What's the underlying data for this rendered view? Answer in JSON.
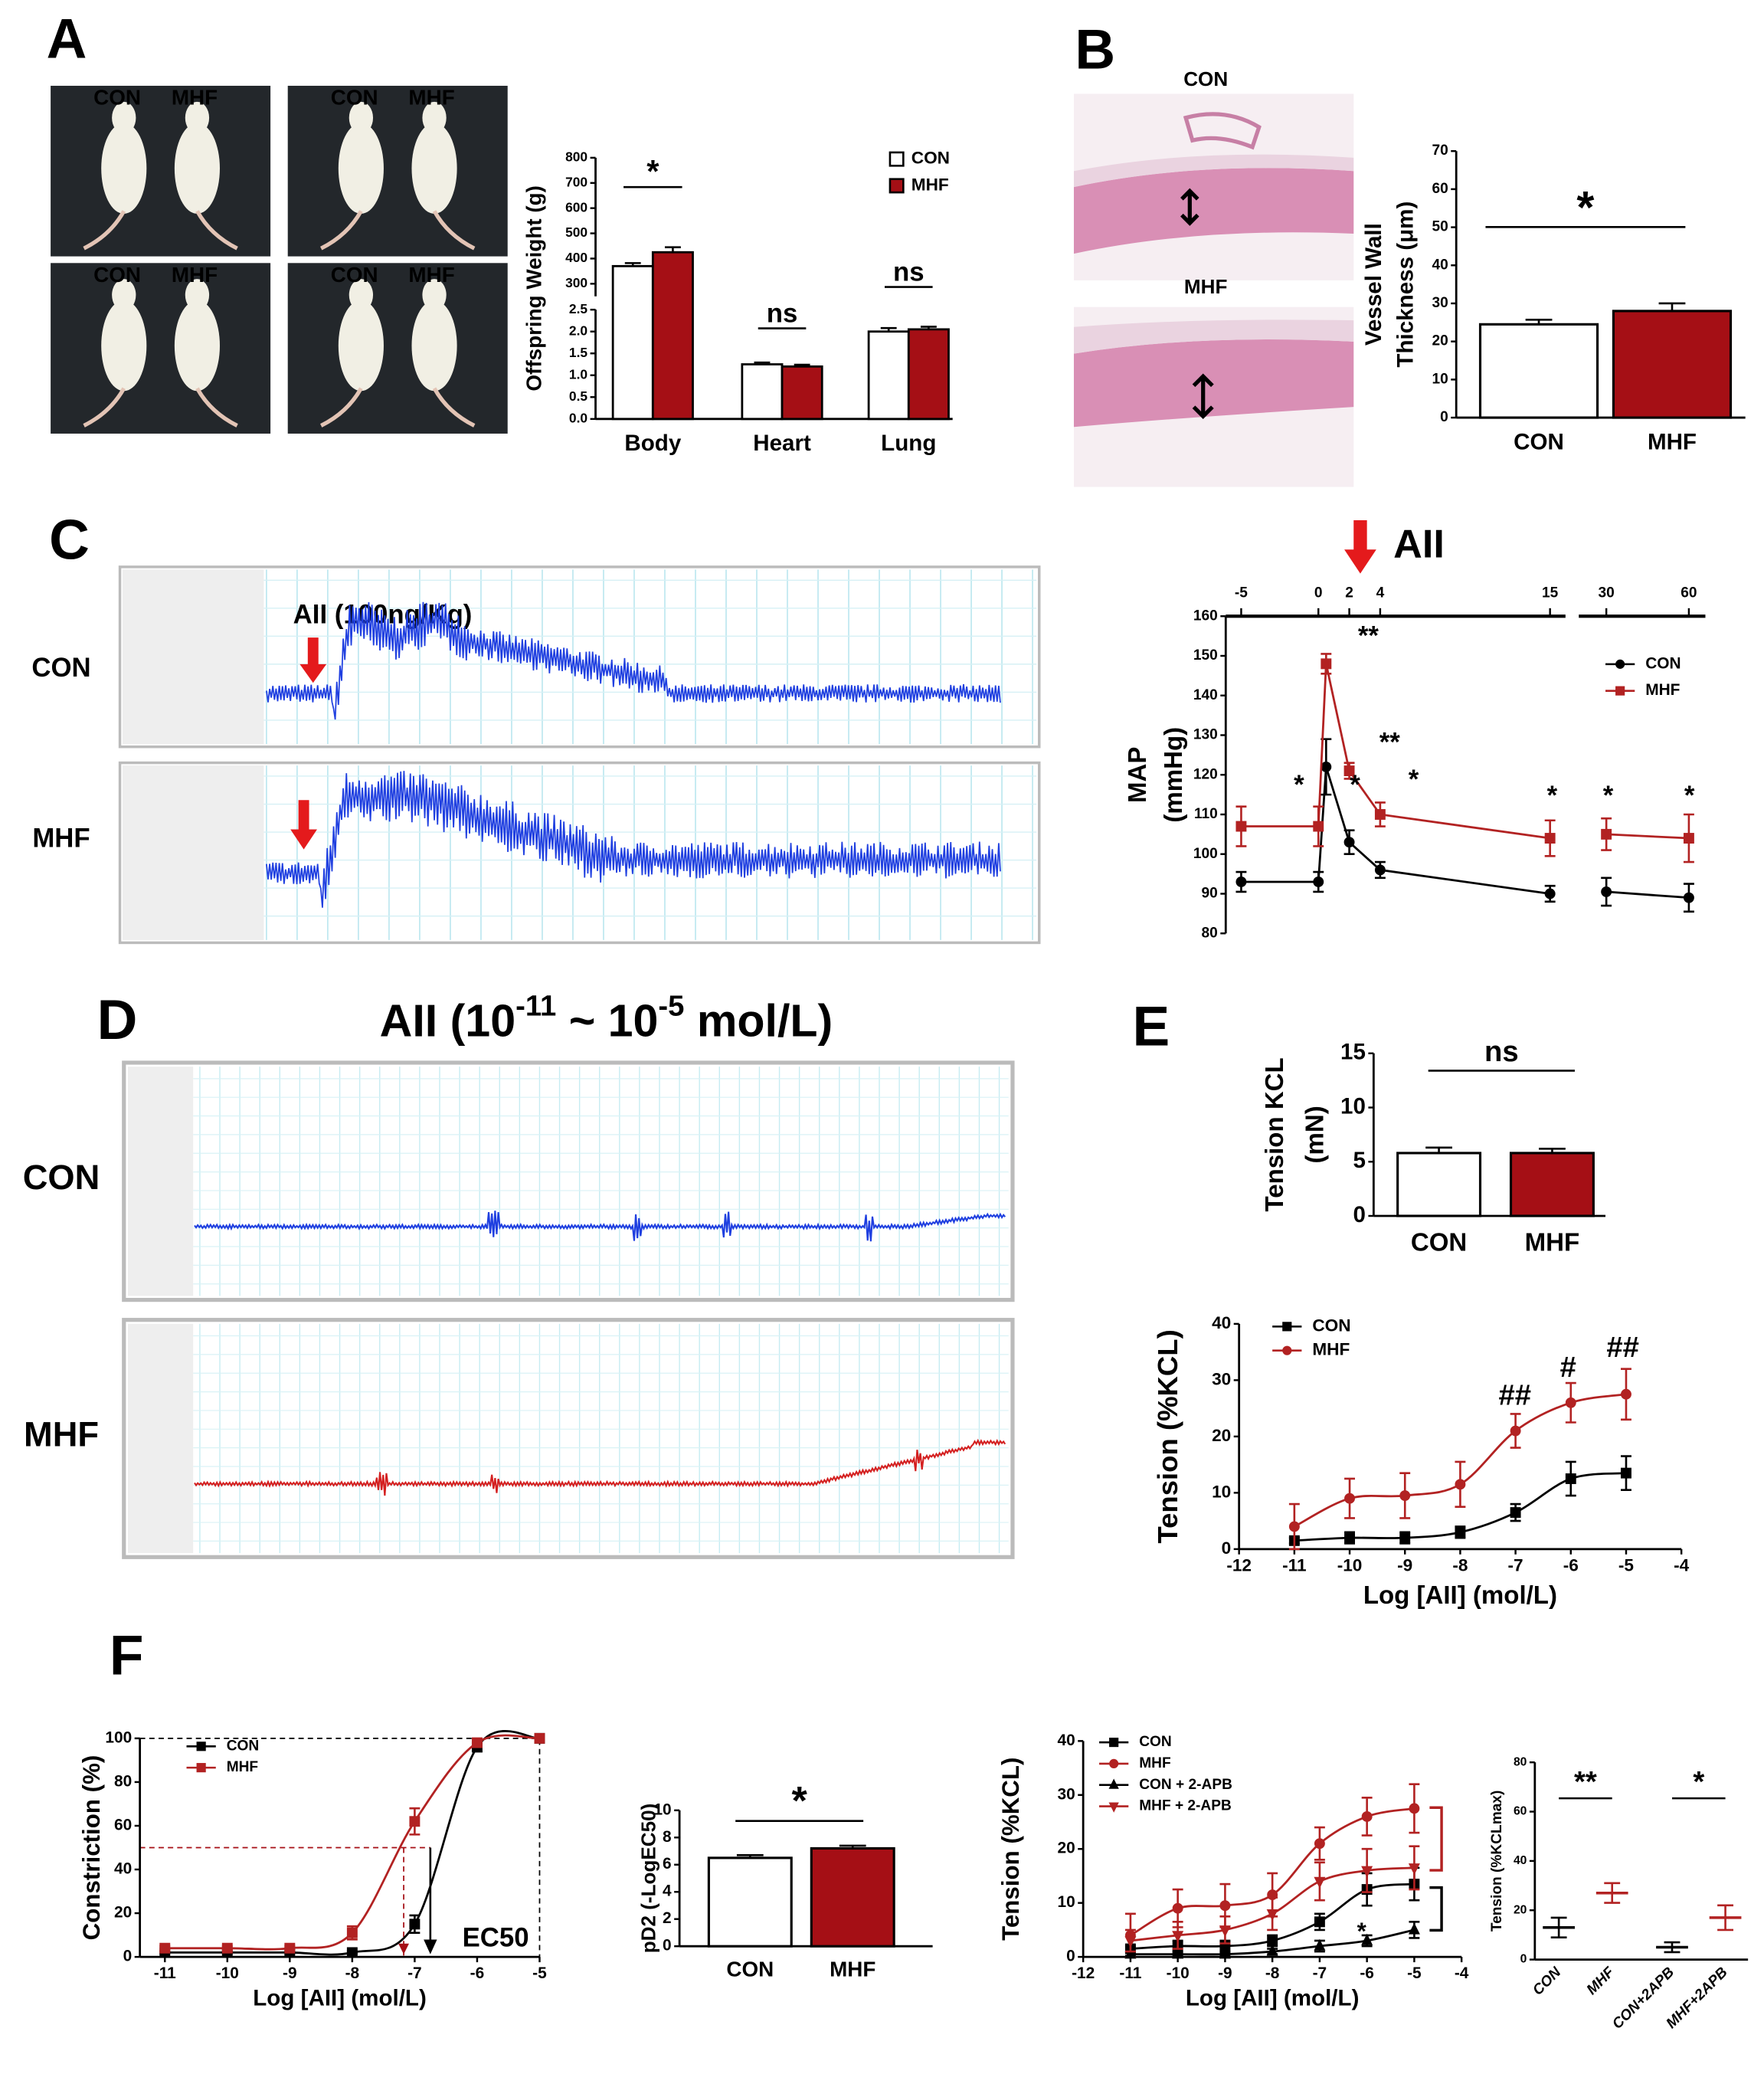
{
  "panel_labels": [
    "A",
    "B",
    "C",
    "D",
    "E",
    "F"
  ],
  "panel_a": {
    "photos": [
      [
        "CON",
        "MHF"
      ],
      [
        "CON",
        "MHF"
      ],
      [
        "CON",
        "MHF"
      ],
      [
        "CON",
        "MHF"
      ]
    ]
  },
  "panel_b": {
    "images": [
      "CON",
      "MHF"
    ]
  },
  "panel_c": {
    "trace_label": "AII (100ng/Kg)",
    "traces": [
      "CON",
      "MHF"
    ]
  },
  "panel_d": {
    "title": [
      "AII  (10",
      "-11",
      " ~ 10",
      "-5",
      " mol/L)"
    ],
    "traces": [
      "CON",
      "MHF"
    ]
  },
  "chart_data": [
    {
      "type": "bar",
      "ylabel": "Offspring Weight (g)",
      "categories": [
        "Body",
        "Heart",
        "Lung"
      ],
      "series": [
        {
          "name": "CON",
          "color": "#ffffff",
          "values": [
            370,
            1.25,
            2.0
          ],
          "errors": [
            12,
            0.04,
            0.08
          ]
        },
        {
          "name": "MHF",
          "color": "#a50f15",
          "values": [
            425,
            1.2,
            2.05
          ],
          "errors": [
            20,
            0.04,
            0.06
          ]
        }
      ],
      "ylim": [
        0,
        800
      ],
      "y_break": [
        2.5,
        250
      ],
      "yticks": [
        {
          "value": 0,
          "label": "0.0"
        },
        {
          "value": 0.5,
          "label": "0.5"
        },
        {
          "value": 1,
          "label": "1.0"
        },
        {
          "value": 1.5,
          "label": "1.5"
        },
        {
          "value": 2,
          "label": "2.0"
        },
        {
          "value": 2.5,
          "label": "2.5"
        },
        300,
        400,
        500,
        600,
        700,
        800
      ],
      "annotations": [
        "*",
        "ns",
        "ns"
      ],
      "legend": "upper right"
    },
    {
      "type": "bar",
      "ylabel": [
        "Vessel Wall",
        "Thickness (μm)"
      ],
      "categories": [
        "CON",
        "MHF"
      ],
      "values": [
        24.5,
        28
      ],
      "errors": [
        1.2,
        2
      ],
      "colors": [
        "#ffffff",
        "#a50f15"
      ],
      "ylim": [
        0,
        70
      ],
      "yticks": [
        0,
        10,
        20,
        30,
        40,
        50,
        60,
        70
      ],
      "annotations": [
        "*"
      ]
    },
    {
      "type": "line",
      "ylabel": [
        "MAP",
        "(mmHg)"
      ],
      "x": [
        -5,
        0,
        0.5,
        2,
        4,
        15,
        30,
        60
      ],
      "xlim": [
        -6,
        66
      ],
      "x_break": [
        16,
        20
      ],
      "xticks": [
        -5,
        0,
        2,
        4,
        15,
        30,
        60
      ],
      "ylim": [
        80,
        160
      ],
      "yticks": [
        80,
        90,
        100,
        110,
        120,
        130,
        140,
        150,
        160
      ],
      "series": [
        {
          "name": "CON",
          "color": "#000000",
          "marker": "circle",
          "values": [
            93,
            93,
            122,
            103,
            96,
            90,
            90.5,
            89
          ],
          "errors": [
            2.5,
            2.5,
            7,
            3,
            2,
            2,
            3.5,
            3.5
          ]
        },
        {
          "name": "MHF",
          "color": "#b22222",
          "marker": "square",
          "values": [
            107,
            107,
            148,
            121,
            110,
            104,
            105,
            104
          ],
          "errors": [
            5,
            5,
            2.5,
            2,
            3,
            4.5,
            4,
            6
          ]
        }
      ],
      "annotations": [
        "AII",
        "*",
        "*",
        "**",
        "**",
        "*",
        "*",
        "*",
        "*"
      ],
      "legend": "upper right"
    },
    {
      "type": "bar",
      "ylabel": [
        "Tension KCL",
        "(mN)"
      ],
      "categories": [
        "CON",
        "MHF"
      ],
      "values": [
        5.8,
        5.8
      ],
      "errors": [
        0.5,
        0.4
      ],
      "colors": [
        "#ffffff",
        "#a50f15"
      ],
      "ylim": [
        0,
        15
      ],
      "yticks": [
        0,
        5,
        10,
        15
      ],
      "annotations": [
        "ns"
      ]
    },
    {
      "type": "line",
      "ylabel": "Tension (%KCL)",
      "xlabel": "Log [AII] (mol/L)",
      "x": [
        -11,
        -10,
        -9,
        -8,
        -7,
        -6,
        -5
      ],
      "xlim": [
        -12,
        -4
      ],
      "xticks": [
        -12,
        -11,
        -10,
        -9,
        -8,
        -7,
        -6,
        -5,
        -4
      ],
      "ylim": [
        0,
        40
      ],
      "yticks": [
        0,
        10,
        20,
        30,
        40
      ],
      "series": [
        {
          "name": "CON",
          "color": "#000000",
          "marker": "square",
          "values": [
            1.5,
            2,
            2,
            3,
            6.5,
            12.5,
            13.5
          ],
          "errors": [
            0.5,
            1,
            1,
            1,
            1.5,
            3,
            3
          ]
        },
        {
          "name": "MHF",
          "color": "#b22222",
          "marker": "circle",
          "values": [
            4,
            9,
            9.5,
            11.5,
            21,
            26,
            27.5
          ],
          "errors": [
            4,
            3.5,
            4,
            4,
            3,
            3.5,
            4.5
          ]
        }
      ],
      "annotations": [
        "##",
        "#",
        "##"
      ],
      "legend": "upper left"
    },
    {
      "type": "line",
      "ylabel": "Constriction (%)",
      "xlabel": "Log [AII] (mol/L)",
      "x": [
        -11,
        -10,
        -9,
        -8,
        -7,
        -6,
        -5
      ],
      "xlim": [
        -11.4,
        -5
      ],
      "xticks": [
        -11,
        -10,
        -9,
        -8,
        -7,
        -6,
        -5
      ],
      "ylim": [
        0,
        100
      ],
      "yticks": [
        0,
        20,
        40,
        60,
        80,
        100
      ],
      "series": [
        {
          "name": "CON",
          "color": "#000000",
          "marker": "square",
          "values": [
            2,
            2,
            2,
            2,
            15,
            96,
            100
          ],
          "errors": [
            0.5,
            0.5,
            0.5,
            0.5,
            4,
            2,
            0
          ]
        },
        {
          "name": "MHF",
          "color": "#b22222",
          "marker": "square",
          "values": [
            4,
            4,
            4,
            11,
            62,
            98,
            100
          ],
          "errors": [
            1,
            1,
            1,
            3,
            6,
            1,
            0
          ]
        }
      ],
      "annotations": [
        "EC50"
      ],
      "legend": "upper left"
    },
    {
      "type": "bar",
      "ylabel": "pD2 (-LogEC50)",
      "categories": [
        "CON",
        "MHF"
      ],
      "values": [
        6.5,
        7.2
      ],
      "errors": [
        0.2,
        0.2
      ],
      "colors": [
        "#ffffff",
        "#a50f15"
      ],
      "ylim": [
        0,
        10
      ],
      "yticks": [
        0,
        2,
        4,
        6,
        8,
        10
      ],
      "annotations": [
        "*"
      ]
    },
    {
      "type": "line",
      "ylabel": "Tension (%KCL)",
      "xlabel": "Log [AII] (mol/L)",
      "x": [
        -11,
        -10,
        -9,
        -8,
        -7,
        -6,
        -5
      ],
      "xlim": [
        -12,
        -4
      ],
      "xticks": [
        -12,
        -11,
        -10,
        -9,
        -8,
        -7,
        -6,
        -5,
        -4
      ],
      "ylim": [
        0,
        40
      ],
      "yticks": [
        0,
        10,
        20,
        30,
        40
      ],
      "series": [
        {
          "name": "CON",
          "color": "#000000",
          "marker": "square",
          "values": [
            1.5,
            2,
            2,
            3,
            6.5,
            12.5,
            13.5
          ],
          "errors": [
            0.5,
            1,
            1,
            1,
            1.5,
            3,
            3
          ]
        },
        {
          "name": "MHF",
          "color": "#b22222",
          "marker": "circle",
          "values": [
            4,
            9,
            9.5,
            11.5,
            21,
            26,
            27.5
          ],
          "errors": [
            4,
            3.5,
            4,
            4,
            3,
            3.5,
            4.5
          ]
        },
        {
          "name": "CON + 2-APB",
          "color": "#000000",
          "marker": "triangle",
          "values": [
            0.5,
            0.5,
            0.5,
            1,
            2,
            3,
            5
          ],
          "errors": [
            0.3,
            0.3,
            0.3,
            0.5,
            1,
            1,
            1.5
          ]
        },
        {
          "name": "MHF + 2-APB",
          "color": "#b22222",
          "marker": "triangle-down",
          "values": [
            3,
            4,
            5,
            8,
            14,
            16,
            16.5
          ],
          "errors": [
            2,
            2.5,
            2.5,
            3,
            3.5,
            4,
            4
          ]
        }
      ],
      "annotations": [
        "*"
      ],
      "legend": "upper left"
    },
    {
      "type": "dot",
      "ylabel": "Tension (%KCLmax)",
      "categories": [
        "CON",
        "MHF",
        "CON+2APB",
        "MHF+2APB"
      ],
      "values": [
        13,
        27,
        5,
        17
      ],
      "errors": [
        4,
        4,
        2,
        5
      ],
      "colors": [
        "#000000",
        "#b22222",
        "#000000",
        "#b22222"
      ],
      "ylim": [
        0,
        80
      ],
      "yticks": [
        0,
        20,
        40,
        60,
        80
      ],
      "annotations": [
        "**",
        "*"
      ]
    }
  ]
}
